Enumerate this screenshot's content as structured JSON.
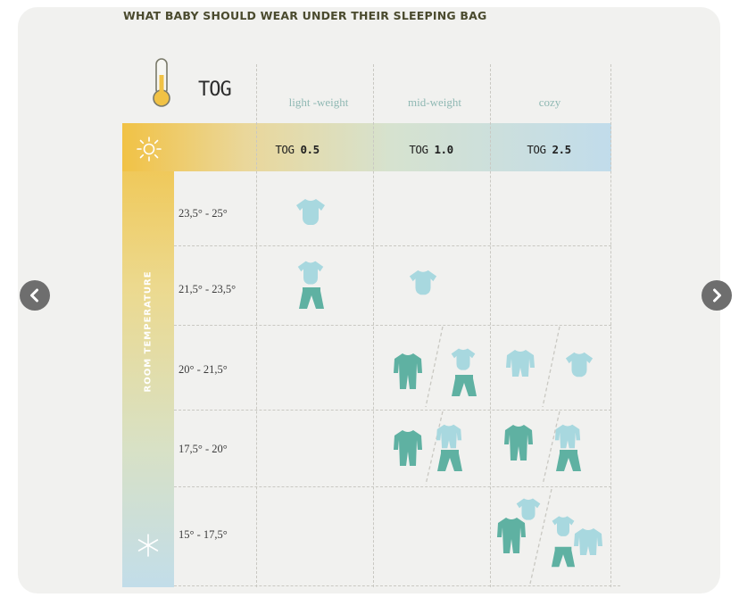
{
  "title": "WHAT BABY SHOULD WEAR UNDER THEIR SLEEPING BAG",
  "header_tog": "TOG",
  "side_label": "ROOM TEMPERATURE",
  "columns": [
    {
      "weight": "light -weight",
      "tog_prefix": "TOG",
      "tog_value": "0.5"
    },
    {
      "weight": "mid-weight",
      "tog_prefix": "TOG",
      "tog_value": "1.0"
    },
    {
      "weight": "cozy",
      "tog_prefix": "TOG",
      "tog_value": "2.5"
    }
  ],
  "rows": [
    {
      "range": "23,5° - 25°"
    },
    {
      "range": "21,5° - 23,5°"
    },
    {
      "range": "20° - 21,5°"
    },
    {
      "range": "17,5° - 20°"
    },
    {
      "range": "15° - 17,5°"
    }
  ],
  "icons": {
    "thermometer": "thermometer-icon",
    "warm": "sun-icon",
    "cold": "snowflake-icon",
    "bodysuit": "bodysuit-icon",
    "pants": "pants-icon",
    "onesie": "onesie-icon"
  },
  "colors": {
    "light": "#a8d8df",
    "dark": "#5fb1a2",
    "warm": "#f1c245",
    "cool": "#c1dceb"
  }
}
